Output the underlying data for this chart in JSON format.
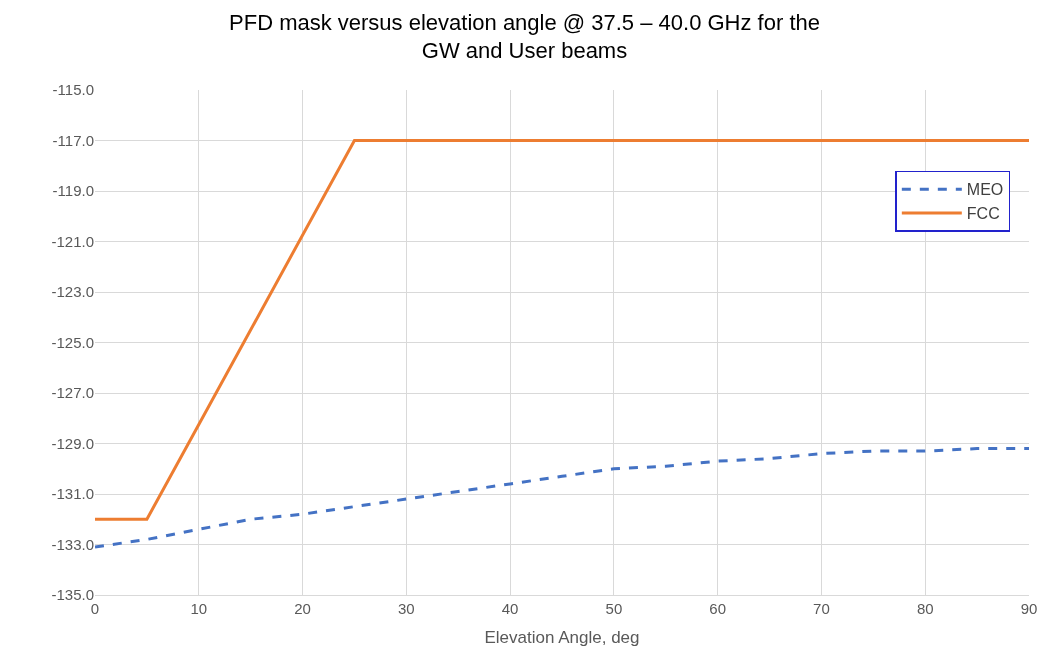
{
  "chart_data": {
    "type": "line",
    "title": "PFD mask versus elevation angle @ 37.5 – 40.0 GHz for the\nGW and User beams",
    "xlabel": "Elevation Angle, deg",
    "xlim": [
      0,
      90
    ],
    "xticks": [
      0,
      10,
      20,
      30,
      40,
      50,
      60,
      70,
      80,
      90
    ],
    "ylim": [
      -135,
      -115
    ],
    "yticks": [
      {
        "value": -135,
        "label": "-135.0"
      },
      {
        "value": -133,
        "label": "-133.0"
      },
      {
        "value": -131,
        "label": "-131.0"
      },
      {
        "value": -129,
        "label": "-129.0"
      },
      {
        "value": -127,
        "label": "-127.0"
      },
      {
        "value": -125,
        "label": "-125.0"
      },
      {
        "value": -123,
        "label": "-123.0"
      },
      {
        "value": -121,
        "label": "-121.0"
      },
      {
        "value": -119,
        "label": "-119.0"
      },
      {
        "value": -117,
        "label": "-117.0"
      },
      {
        "value": -115,
        "label": "-115.0"
      }
    ],
    "grid": true,
    "legend": "top right",
    "series": [
      {
        "name": "MEO",
        "color": "#4472c4",
        "line_style": "dashed",
        "x": [
          0,
          5,
          10,
          15,
          20,
          25,
          30,
          35,
          40,
          45,
          50,
          55,
          60,
          65,
          70,
          75,
          80,
          85,
          90
        ],
        "values": [
          -133.1,
          -132.8,
          -132.4,
          -132.0,
          -131.8,
          -131.5,
          -131.2,
          -130.9,
          -130.6,
          -130.3,
          -130.0,
          -129.9,
          -129.7,
          -129.6,
          -129.4,
          -129.3,
          -129.3,
          -129.2,
          -129.2
        ]
      },
      {
        "name": "FCC",
        "color": "#ed7d31",
        "line_style": "solid",
        "x": [
          0,
          5,
          9,
          25,
          90
        ],
        "values": [
          -132,
          -132,
          -129,
          -117,
          -117
        ]
      }
    ]
  }
}
